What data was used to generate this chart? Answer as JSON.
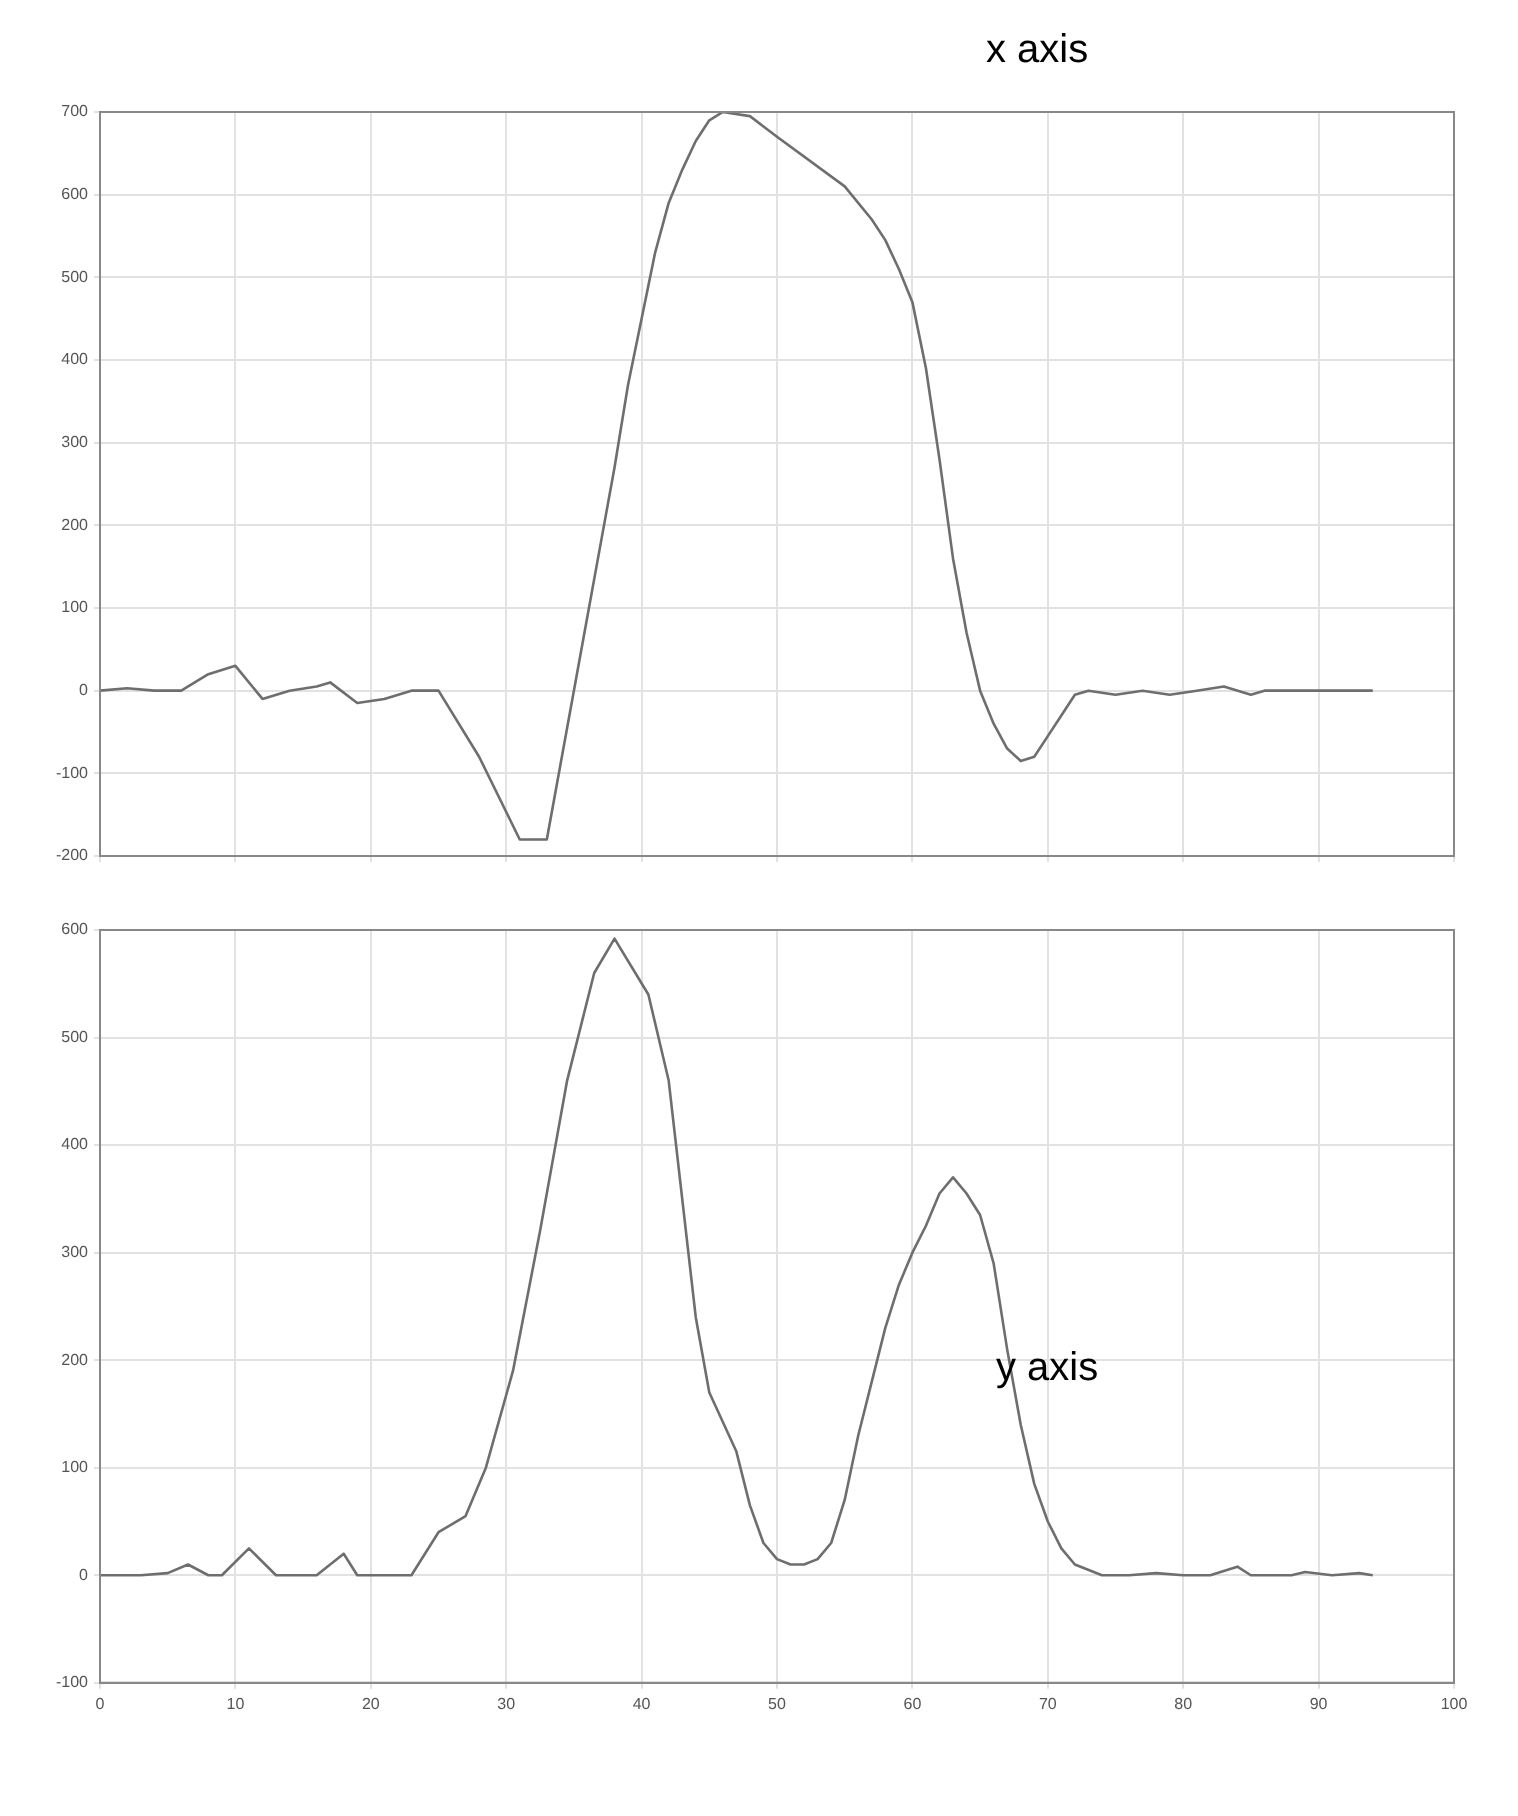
{
  "chart_data": [
    {
      "type": "line",
      "color": "#6e6e6e",
      "grid": true,
      "tick_labels": "y",
      "xlim": [
        0,
        100
      ],
      "xticks": [
        0,
        10,
        20,
        30,
        40,
        50,
        60,
        70,
        80,
        90,
        100
      ],
      "ylim": [
        -200,
        700
      ],
      "yticks": [
        -200,
        -100,
        0,
        100,
        200,
        300,
        400,
        500,
        600,
        700
      ],
      "annotations": [
        "x axis"
      ],
      "x": [
        0,
        2,
        4,
        6,
        8,
        10,
        12,
        14,
        16,
        17,
        19,
        21,
        23,
        25,
        28,
        31,
        33,
        35,
        36,
        37,
        38,
        39,
        40,
        41,
        42,
        43,
        44,
        45,
        46,
        48,
        50,
        55,
        57,
        58,
        59,
        60,
        61,
        62,
        63,
        64,
        65,
        66,
        67,
        68,
        69,
        70,
        71,
        72,
        73,
        75,
        77,
        79,
        81,
        83,
        85,
        86,
        88,
        90,
        92,
        94
      ],
      "values": [
        0,
        3,
        0,
        0,
        20,
        30,
        -10,
        0,
        5,
        10,
        -15,
        -10,
        0,
        0,
        -80,
        -180,
        -180,
        0,
        90,
        180,
        270,
        370,
        450,
        530,
        590,
        630,
        665,
        690,
        700,
        695,
        670,
        610,
        570,
        545,
        510,
        470,
        390,
        280,
        160,
        70,
        0,
        -40,
        -70,
        -85,
        -80,
        -55,
        -30,
        -5,
        0,
        -5,
        0,
        -5,
        0,
        5,
        -5,
        0,
        0,
        0,
        0,
        0
      ]
    },
    {
      "type": "line",
      "color": "#6e6e6e",
      "grid": true,
      "xlim": [
        0,
        100
      ],
      "xticks": [
        0,
        10,
        20,
        30,
        40,
        50,
        60,
        70,
        80,
        90,
        100
      ],
      "ylim": [
        -100,
        600
      ],
      "yticks": [
        -100,
        0,
        100,
        200,
        300,
        400,
        500,
        600
      ],
      "annotations": [
        "y axis"
      ],
      "x": [
        0,
        3,
        5,
        6.5,
        8,
        9,
        11,
        13,
        16,
        18,
        19,
        23,
        24,
        25,
        27,
        28.5,
        30.5,
        32.5,
        34.5,
        36.5,
        38,
        40.5,
        42,
        44,
        45,
        47,
        48,
        49,
        50,
        51,
        52,
        53,
        54,
        55,
        56,
        57,
        58,
        59,
        60,
        61,
        62,
        63,
        64,
        65,
        66,
        67,
        68,
        69,
        70,
        71,
        72,
        74,
        76,
        78,
        80,
        82,
        84,
        85,
        88,
        89,
        91,
        93,
        94
      ],
      "values": [
        0,
        0,
        2,
        10,
        0,
        0,
        25,
        0,
        0,
        20,
        0,
        0,
        20,
        40,
        55,
        100,
        190,
        320,
        460,
        560,
        592,
        540,
        460,
        240,
        170,
        115,
        65,
        30,
        15,
        10,
        10,
        15,
        30,
        70,
        130,
        180,
        230,
        270,
        300,
        325,
        355,
        370,
        355,
        335,
        290,
        210,
        140,
        85,
        50,
        25,
        10,
        0,
        0,
        2,
        0,
        0,
        8,
        0,
        0,
        3,
        0,
        2,
        0
      ]
    }
  ]
}
